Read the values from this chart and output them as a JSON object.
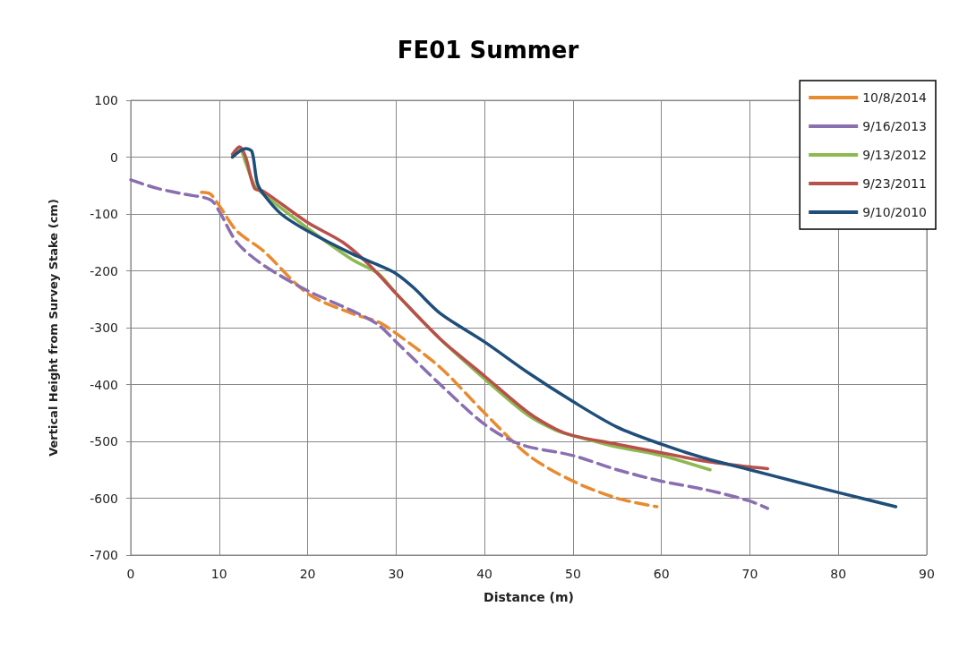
{
  "chart_data": {
    "type": "line",
    "title": "FE01 Summer",
    "xlabel": "Distance (m)",
    "ylabel": "Vertical Height from Survey Stake (cm)",
    "xlim": [
      0,
      90
    ],
    "xticks": [
      0,
      10,
      20,
      30,
      40,
      50,
      60,
      70,
      80,
      90
    ],
    "ylim": [
      -700,
      100
    ],
    "yticks": [
      -700,
      -600,
      -500,
      -400,
      -300,
      -200,
      -100,
      0,
      100
    ],
    "grid": true,
    "legend": "top right",
    "marker": "none",
    "series": [
      {
        "name": "10/8/2014",
        "color": "#e98a2f",
        "line_style": "dashed",
        "x": [
          8,
          9,
          10,
          12,
          15,
          20,
          25,
          28,
          30,
          35,
          40,
          45,
          50,
          55,
          59.5
        ],
        "values": [
          -62,
          -65,
          -85,
          -130,
          -165,
          -240,
          -275,
          -290,
          -310,
          -370,
          -450,
          -525,
          -570,
          -600,
          -615
        ]
      },
      {
        "name": "9/16/2013",
        "color": "#8a6fb0",
        "line_style": "dashed",
        "x": [
          0,
          3,
          6,
          9,
          10,
          12,
          15,
          20,
          25,
          28,
          30,
          35,
          40,
          44,
          50,
          55,
          60,
          65,
          70,
          72
        ],
        "values": [
          -40,
          -55,
          -65,
          -75,
          -95,
          -150,
          -190,
          -235,
          -270,
          -295,
          -325,
          -400,
          -470,
          -505,
          -525,
          -550,
          -570,
          -585,
          -605,
          -618
        ]
      },
      {
        "name": "9/13/2012",
        "color": "#8db94f",
        "line_style": "solid",
        "x": [
          11.5,
          12.3,
          13,
          14,
          15,
          20,
          25,
          28,
          30,
          35,
          40,
          45,
          48,
          50,
          55,
          60,
          65.5
        ],
        "values": [
          0,
          15,
          -10,
          -50,
          -65,
          -125,
          -180,
          -205,
          -240,
          -320,
          -390,
          -455,
          -480,
          -490,
          -510,
          -525,
          -550
        ]
      },
      {
        "name": "9/23/2011",
        "color": "#b8504b",
        "line_style": "solid",
        "x": [
          11.5,
          12.3,
          13,
          14,
          15,
          20,
          24,
          27,
          30,
          35,
          40,
          45,
          48,
          50,
          55,
          60,
          65,
          70,
          72
        ],
        "values": [
          5,
          18,
          0,
          -55,
          -60,
          -115,
          -150,
          -190,
          -240,
          -320,
          -385,
          -450,
          -478,
          -490,
          -505,
          -520,
          -535,
          -545,
          -548
        ]
      },
      {
        "name": "9/10/2010",
        "color": "#1f4e79",
        "line_style": "solid",
        "x": [
          11.5,
          13,
          13.7,
          14.3,
          15,
          17,
          20,
          25,
          28,
          30,
          32,
          35,
          40,
          45,
          50,
          55,
          60,
          65,
          70,
          75,
          80,
          86.5
        ],
        "values": [
          0,
          15,
          10,
          -45,
          -65,
          -100,
          -130,
          -170,
          -190,
          -205,
          -230,
          -275,
          -325,
          -380,
          -430,
          -475,
          -505,
          -530,
          -550,
          -570,
          -590,
          -615
        ]
      }
    ]
  }
}
